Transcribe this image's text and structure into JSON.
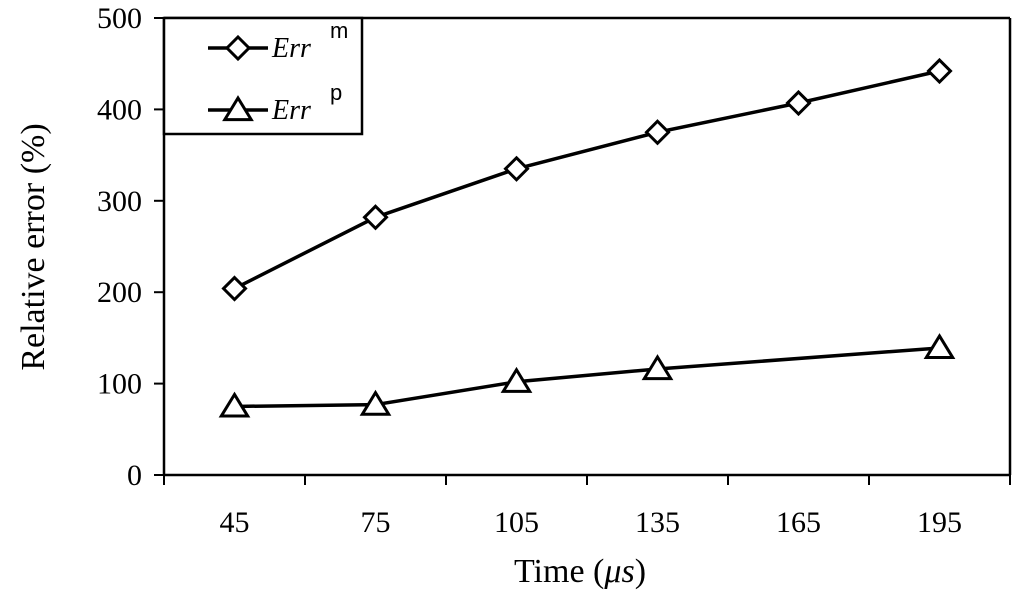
{
  "chart_data": {
    "type": "line",
    "title": "",
    "xlabel": "Time (μs)",
    "ylabel": "Relative error (%)",
    "x": [
      45,
      75,
      105,
      135,
      165,
      195
    ],
    "xlim": [
      30,
      210
    ],
    "ylim": [
      0,
      500
    ],
    "yticks": [
      0,
      100,
      200,
      300,
      400,
      500
    ],
    "grid": false,
    "legend_position": "top-left",
    "series": [
      {
        "name": "Err",
        "superscript": "m",
        "marker": "diamond",
        "x": [
          45,
          75,
          105,
          135,
          165,
          195
        ],
        "values": [
          204,
          282,
          335,
          375,
          407,
          442
        ]
      },
      {
        "name": "Err",
        "superscript": "p",
        "marker": "triangle",
        "x": [
          45,
          75,
          105,
          135,
          195
        ],
        "values": [
          75,
          77,
          102,
          116,
          139
        ]
      }
    ]
  },
  "labels": {
    "xlabel_prefix": "Time (",
    "xlabel_unit": "μs",
    "xlabel_suffix": ")"
  }
}
